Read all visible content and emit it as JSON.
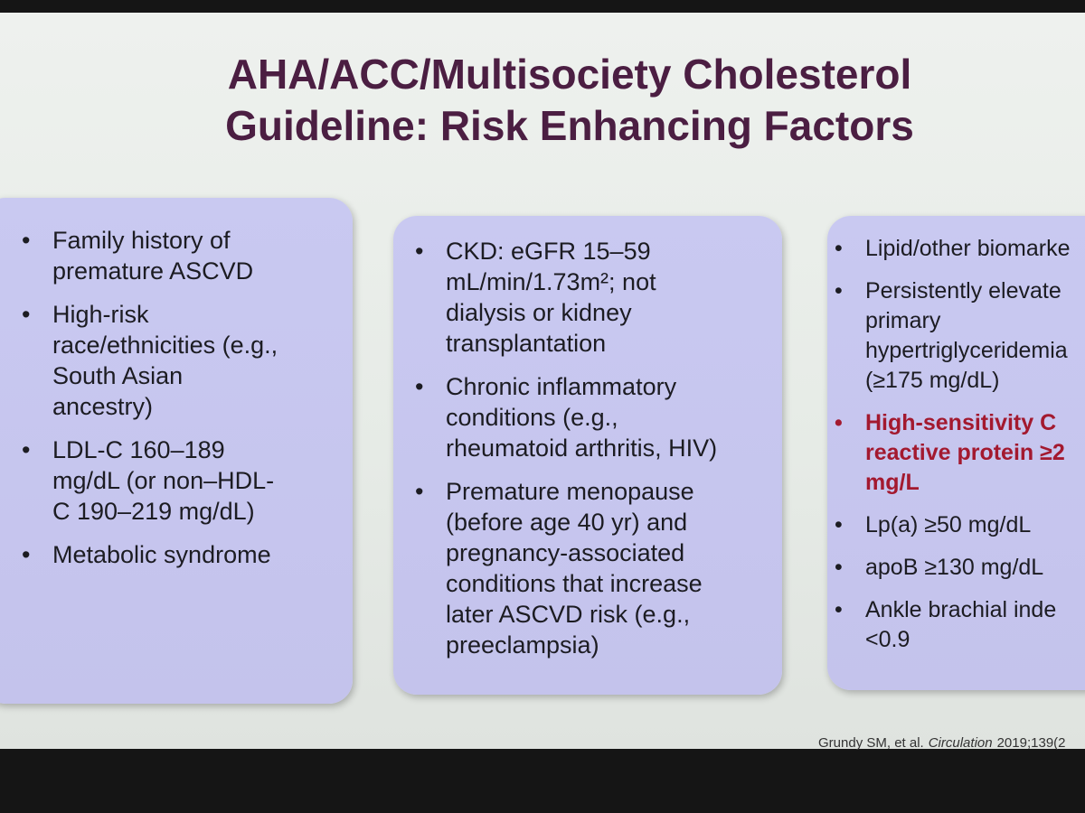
{
  "title": {
    "lines": [
      "AHA/ACC/Multisociety Cholesterol",
      "Guideline: Risk Enhancing Factors"
    ]
  },
  "boxes": [
    {
      "items": [
        {
          "lines": [
            "Family history of",
            "premature ASCVD"
          ]
        },
        {
          "lines": [
            "High-risk",
            "race/ethnicities (e.g.,",
            "South Asian",
            "ancestry)"
          ]
        },
        {
          "lines": [
            "LDL-C 160–189",
            "mg/dL (or non–HDL-",
            "C 190–219 mg/dL)"
          ]
        },
        {
          "lines": [
            "Metabolic syndrome"
          ]
        }
      ]
    },
    {
      "items": [
        {
          "lines": [
            "CKD: eGFR 15–59",
            "mL/min/1.73m²; not",
            "dialysis or kidney",
            "transplantation"
          ]
        },
        {
          "lines": [
            "Chronic inflammatory",
            "conditions (e.g.,",
            "rheumatoid arthritis, HIV)"
          ]
        },
        {
          "lines": [
            "Premature menopause",
            "(before age 40 yr) and",
            "pregnancy-associated",
            "conditions that increase",
            "later ASCVD risk (e.g.,",
            "preeclampsia)"
          ]
        }
      ]
    },
    {
      "items": [
        {
          "lines": [
            "Lipid/other biomarke"
          ]
        },
        {
          "lines": [
            "Persistently elevate",
            "primary",
            "hypertriglyceridemia",
            "(≥175 mg/dL)"
          ]
        },
        {
          "lines": [
            "High-sensitivity C",
            "reactive protein ≥2",
            "mg/L"
          ],
          "color": "#a3192f"
        },
        {
          "lines": [
            "Lp(a) ≥50 mg/dL"
          ]
        },
        {
          "lines": [
            "apoB ≥130 mg/dL"
          ]
        },
        {
          "lines": [
            "Ankle brachial inde",
            "<0.9"
          ]
        }
      ]
    }
  ],
  "citation": {
    "parts": [
      "Grundy SM, et al.",
      "Circulation",
      "2019;139(2"
    ]
  }
}
